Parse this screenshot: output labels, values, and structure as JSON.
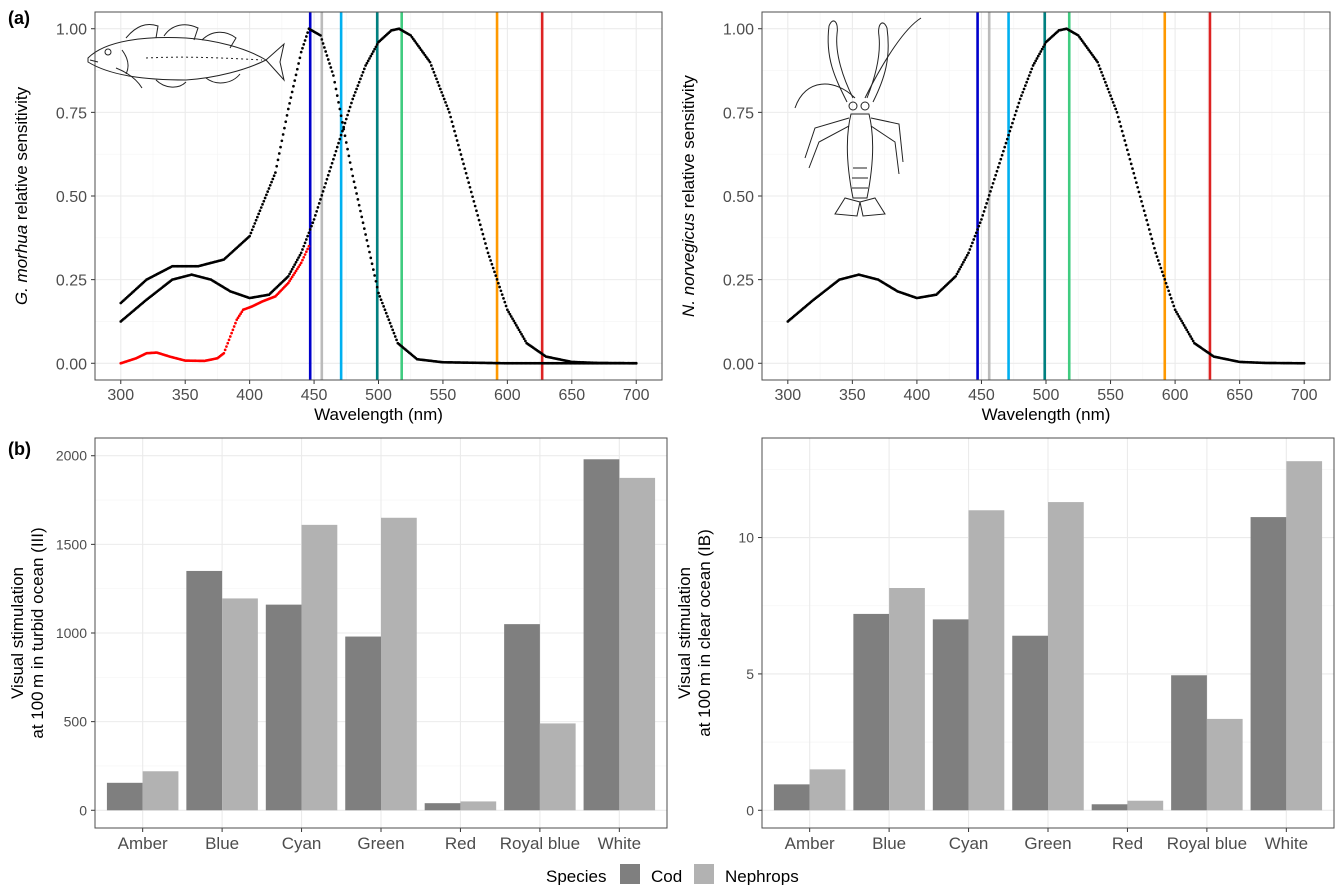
{
  "panel_labels": [
    "(a)",
    "(b)"
  ],
  "colors": {
    "grid": "#ebebeb",
    "grid_minor": "#f5f5f5",
    "frame": "#4d4d4d",
    "axis_text": "#4d4d4d",
    "curve_black": "#000000",
    "curve_red": "#ff0000",
    "cod": "#7f7f7f",
    "nephrops": "#b2b2b2",
    "led_lines": {
      "Royal blue": "#0000cc",
      "White": "#bbbbbb",
      "Blue": "#00b0f0",
      "Cyan": "#008080",
      "Green": "#40cc80",
      "Amber": "#ff9900",
      "Red": "#dd2222"
    }
  },
  "icons": {
    "fish": "cod-fish-drawing",
    "lobster": "nephrops-lobster-drawing"
  },
  "legend": {
    "title": "Species",
    "items": [
      "Cod",
      "Nephrops"
    ]
  },
  "chart_data": [
    {
      "id": "a-left",
      "type": "line",
      "xlabel": "Wavelength (nm)",
      "ylabel_italic": "G. morhua",
      "ylabel_rest": " relative sensitivity",
      "xlim": [
        300,
        700
      ],
      "ylim": [
        0,
        1
      ],
      "xticks": [
        "300",
        "350",
        "400",
        "450",
        "500",
        "550",
        "600",
        "650",
        "700"
      ],
      "yticks": [
        "0.00",
        "0.25",
        "0.50",
        "0.75",
        "1.00"
      ],
      "led_wavelengths": [
        {
          "name": "Royal blue",
          "x": 447
        },
        {
          "name": "White",
          "x": 456
        },
        {
          "name": "Blue",
          "x": 471
        },
        {
          "name": "Cyan",
          "x": 499
        },
        {
          "name": "Green",
          "x": 518
        },
        {
          "name": "Amber",
          "x": 592
        },
        {
          "name": "Red",
          "x": 627
        }
      ],
      "series": [
        {
          "style": "black",
          "peak": 446,
          "points": [
            [
              300,
              0.18
            ],
            [
              320,
              0.25
            ],
            [
              340,
              0.29
            ],
            [
              360,
              0.29
            ],
            [
              380,
              0.31
            ],
            [
              400,
              0.38
            ],
            [
              420,
              0.57
            ],
            [
              430,
              0.76
            ],
            [
              440,
              0.93
            ],
            [
              446,
              1.0
            ],
            [
              455,
              0.98
            ],
            [
              465,
              0.86
            ],
            [
              480,
              0.56
            ],
            [
              500,
              0.21
            ],
            [
              515,
              0.06
            ],
            [
              530,
              0.012
            ],
            [
              550,
              0.003
            ],
            [
              600,
              0.0
            ],
            [
              700,
              0.0
            ]
          ]
        },
        {
          "style": "black",
          "peak": 516,
          "points": [
            [
              300,
              0.125
            ],
            [
              320,
              0.19
            ],
            [
              340,
              0.25
            ],
            [
              355,
              0.265
            ],
            [
              370,
              0.25
            ],
            [
              385,
              0.215
            ],
            [
              400,
              0.195
            ],
            [
              415,
              0.205
            ],
            [
              430,
              0.26
            ],
            [
              440,
              0.33
            ],
            [
              450,
              0.43
            ],
            [
              460,
              0.55
            ],
            [
              470,
              0.67
            ],
            [
              480,
              0.79
            ],
            [
              490,
              0.89
            ],
            [
              500,
              0.96
            ],
            [
              510,
              0.995
            ],
            [
              516,
              1.0
            ],
            [
              525,
              0.98
            ],
            [
              540,
              0.9
            ],
            [
              555,
              0.75
            ],
            [
              570,
              0.54
            ],
            [
              585,
              0.33
            ],
            [
              600,
              0.16
            ],
            [
              615,
              0.06
            ],
            [
              630,
              0.02
            ],
            [
              650,
              0.004
            ],
            [
              670,
              0.001
            ],
            [
              700,
              0.0
            ]
          ]
        },
        {
          "style": "red",
          "peak": 446,
          "points": [
            [
              300,
              0.0
            ],
            [
              312,
              0.015
            ],
            [
              320,
              0.03
            ],
            [
              328,
              0.032
            ],
            [
              338,
              0.02
            ],
            [
              350,
              0.008
            ],
            [
              365,
              0.007
            ],
            [
              375,
              0.015
            ],
            [
              380,
              0.03
            ],
            [
              385,
              0.08
            ],
            [
              390,
              0.13
            ],
            [
              395,
              0.16
            ],
            [
              402,
              0.17
            ],
            [
              410,
              0.185
            ],
            [
              420,
              0.2
            ],
            [
              430,
              0.24
            ],
            [
              440,
              0.3
            ],
            [
              446,
              0.35
            ]
          ]
        }
      ]
    },
    {
      "id": "a-right",
      "type": "line",
      "xlabel": "Wavelength (nm)",
      "ylabel_italic": "N. norvegicus",
      "ylabel_rest": " relative sensitivity",
      "xlim": [
        300,
        700
      ],
      "ylim": [
        0,
        1
      ],
      "xticks": [
        "300",
        "350",
        "400",
        "450",
        "500",
        "550",
        "600",
        "650",
        "700"
      ],
      "yticks": [
        "0.00",
        "0.25",
        "0.50",
        "0.75",
        "1.00"
      ],
      "led_wavelengths": [
        {
          "name": "Royal blue",
          "x": 447
        },
        {
          "name": "White",
          "x": 456
        },
        {
          "name": "Blue",
          "x": 471
        },
        {
          "name": "Cyan",
          "x": 499
        },
        {
          "name": "Green",
          "x": 518
        },
        {
          "name": "Amber",
          "x": 592
        },
        {
          "name": "Red",
          "x": 627
        }
      ],
      "series": [
        {
          "style": "black",
          "peak": 516,
          "points": [
            [
              300,
              0.125
            ],
            [
              320,
              0.19
            ],
            [
              340,
              0.25
            ],
            [
              355,
              0.265
            ],
            [
              370,
              0.25
            ],
            [
              385,
              0.215
            ],
            [
              400,
              0.195
            ],
            [
              415,
              0.205
            ],
            [
              430,
              0.26
            ],
            [
              440,
              0.33
            ],
            [
              450,
              0.43
            ],
            [
              460,
              0.55
            ],
            [
              470,
              0.67
            ],
            [
              480,
              0.79
            ],
            [
              490,
              0.89
            ],
            [
              500,
              0.96
            ],
            [
              510,
              0.995
            ],
            [
              516,
              1.0
            ],
            [
              525,
              0.98
            ],
            [
              540,
              0.9
            ],
            [
              555,
              0.75
            ],
            [
              570,
              0.54
            ],
            [
              585,
              0.33
            ],
            [
              600,
              0.16
            ],
            [
              615,
              0.06
            ],
            [
              630,
              0.02
            ],
            [
              650,
              0.004
            ],
            [
              670,
              0.001
            ],
            [
              700,
              0.0
            ]
          ]
        }
      ]
    },
    {
      "id": "b-left",
      "type": "bar",
      "ylabel_line1": "Visual stimulation",
      "ylabel_line2": "at 100 m in turbid ocean (III)",
      "categories": [
        "Amber",
        "Blue",
        "Cyan",
        "Green",
        "Red",
        "Royal blue",
        "White"
      ],
      "ylim": [
        0,
        2000
      ],
      "yticks": [
        0,
        500,
        1000,
        1500,
        2000
      ],
      "series": [
        {
          "name": "Cod",
          "values": [
            155,
            1350,
            1160,
            980,
            40,
            1050,
            1980
          ]
        },
        {
          "name": "Nephrops",
          "values": [
            220,
            1195,
            1610,
            1650,
            50,
            490,
            1875
          ]
        }
      ]
    },
    {
      "id": "b-right",
      "type": "bar",
      "ylabel_line1": "Visual stimulation",
      "ylabel_line2": "at 100 m in clear ocean (IB)",
      "categories": [
        "Amber",
        "Blue",
        "Cyan",
        "Green",
        "Red",
        "Royal blue",
        "White"
      ],
      "ylim": [
        0,
        13
      ],
      "yticks": [
        0,
        5,
        10
      ],
      "series": [
        {
          "name": "Cod",
          "values": [
            0.95,
            7.2,
            7.0,
            6.4,
            0.22,
            4.95,
            10.75
          ]
        },
        {
          "name": "Nephrops",
          "values": [
            1.5,
            8.15,
            11.0,
            11.3,
            0.35,
            3.35,
            12.8
          ]
        }
      ]
    }
  ]
}
